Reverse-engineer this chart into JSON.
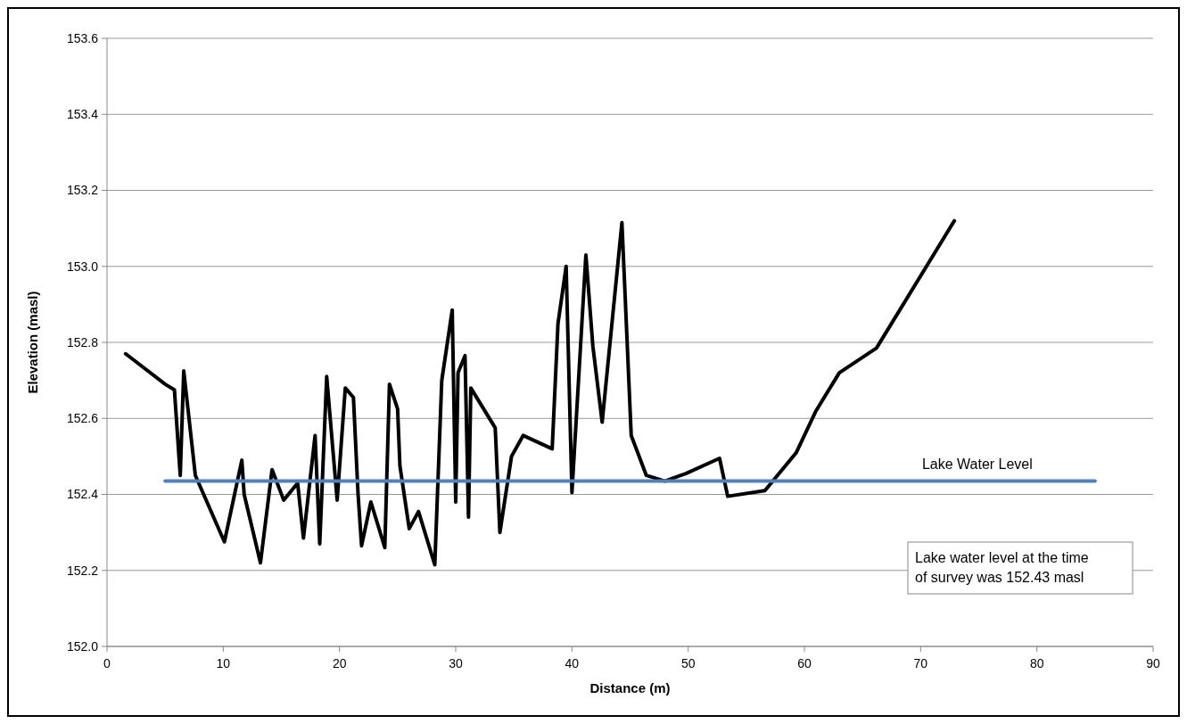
{
  "chart_data": {
    "type": "line",
    "xlabel": "Distance (m)",
    "ylabel": "Elevation (masl)",
    "xlim": [
      0,
      90
    ],
    "xticks": [
      0,
      10,
      20,
      30,
      40,
      50,
      60,
      70,
      80,
      90
    ],
    "ylim": [
      152.0,
      153.6
    ],
    "yticks": [
      {
        "value": 152.0,
        "label": "152.0"
      },
      {
        "value": 152.2,
        "label": "152.2"
      },
      {
        "value": 152.4,
        "label": "152.4"
      },
      {
        "value": 152.6,
        "label": "152.6"
      },
      {
        "value": 152.8,
        "label": "152.8"
      },
      {
        "value": 153.0,
        "label": "153.0"
      },
      {
        "value": 153.2,
        "label": "153.2"
      },
      {
        "value": 153.4,
        "label": "153.4"
      },
      {
        "value": 153.6,
        "label": "153.6"
      }
    ],
    "grid": "y",
    "marker": "none",
    "line_style": "solid",
    "series": [
      {
        "color": "#000000",
        "x": [
          1.6,
          5.0,
          5.8,
          6.3,
          6.6,
          7.6,
          10.1,
          11.6,
          11.8,
          13.2,
          14.2,
          15.2,
          16.4,
          16.9,
          17.9,
          18.3,
          18.9,
          19.8,
          20.5,
          21.2,
          21.6,
          21.9,
          22.7,
          23.9,
          24.3,
          25.0,
          25.2,
          26.0,
          26.8,
          28.2,
          28.8,
          29.7,
          30.0,
          30.2,
          30.8,
          31.1,
          31.3,
          33.4,
          33.8,
          34.8,
          35.8,
          38.3,
          38.8,
          39.5,
          40.0,
          41.2,
          41.8,
          42.6,
          44.3,
          45.1,
          46.4,
          48.0,
          49.8,
          52.7,
          53.4,
          56.6,
          59.3,
          61.0,
          63.0,
          66.2,
          72.9
        ],
        "values": [
          152.77,
          152.69,
          152.675,
          152.45,
          152.725,
          152.45,
          152.275,
          152.49,
          152.4,
          152.22,
          152.465,
          152.385,
          152.43,
          152.285,
          152.555,
          152.27,
          152.71,
          152.385,
          152.68,
          152.655,
          152.4,
          152.265,
          152.38,
          152.26,
          152.69,
          152.625,
          152.475,
          152.31,
          152.355,
          152.215,
          152.7,
          152.885,
          152.38,
          152.72,
          152.765,
          152.34,
          152.68,
          152.575,
          152.3,
          152.5,
          152.555,
          152.52,
          152.85,
          153.0,
          152.405,
          153.03,
          152.79,
          152.59,
          153.115,
          152.555,
          152.45,
          152.435,
          152.455,
          152.495,
          152.395,
          152.41,
          152.51,
          152.62,
          152.72,
          152.785,
          153.12
        ]
      },
      {
        "name": "Lake Water Level",
        "color": "#4f81bd",
        "x": [
          5,
          85
        ],
        "values": [
          152.435,
          152.435
        ]
      }
    ],
    "annotations": [
      "Lake water level  at the time of survey was  152.43 masl"
    ]
  }
}
